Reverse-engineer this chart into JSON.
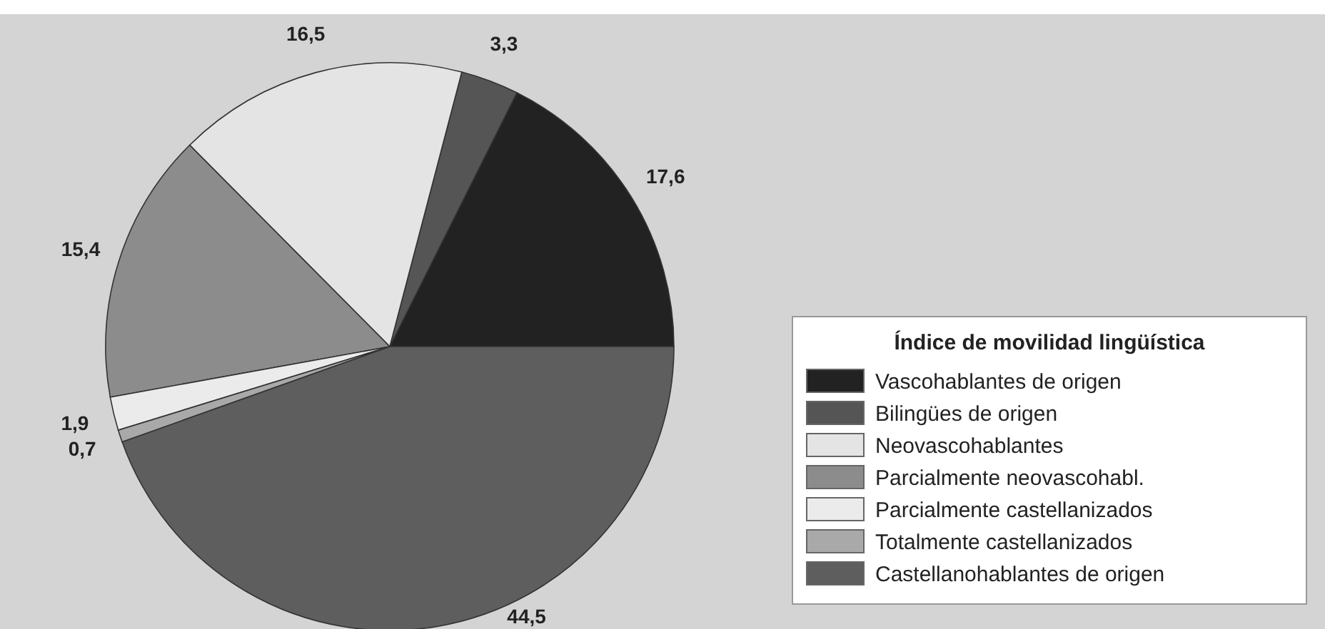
{
  "chart_data": {
    "type": "pie",
    "legend_title": "Índice de movilidad lingüística",
    "legend": "right",
    "categories": [
      "Vascohablantes de origen",
      "Bilingües de origen",
      "Neovascohablantes",
      "Parcialmente neovascohabl.",
      "Parcialmente castellanizados",
      "Totalmente castellanizados",
      "Castellanohablantes de origen"
    ],
    "values": [
      17.6,
      3.3,
      16.5,
      15.4,
      1.9,
      0.7,
      44.5
    ],
    "value_labels": [
      "17,6",
      "3,3",
      "16,5",
      "15,4",
      "1,9",
      "0,7",
      "44,5"
    ],
    "colors": [
      "#222222",
      "#555555",
      "#e4e4e4",
      "#8c8c8c",
      "#ebebeb",
      "#a9a9a9",
      "#5e5e5e"
    ]
  }
}
